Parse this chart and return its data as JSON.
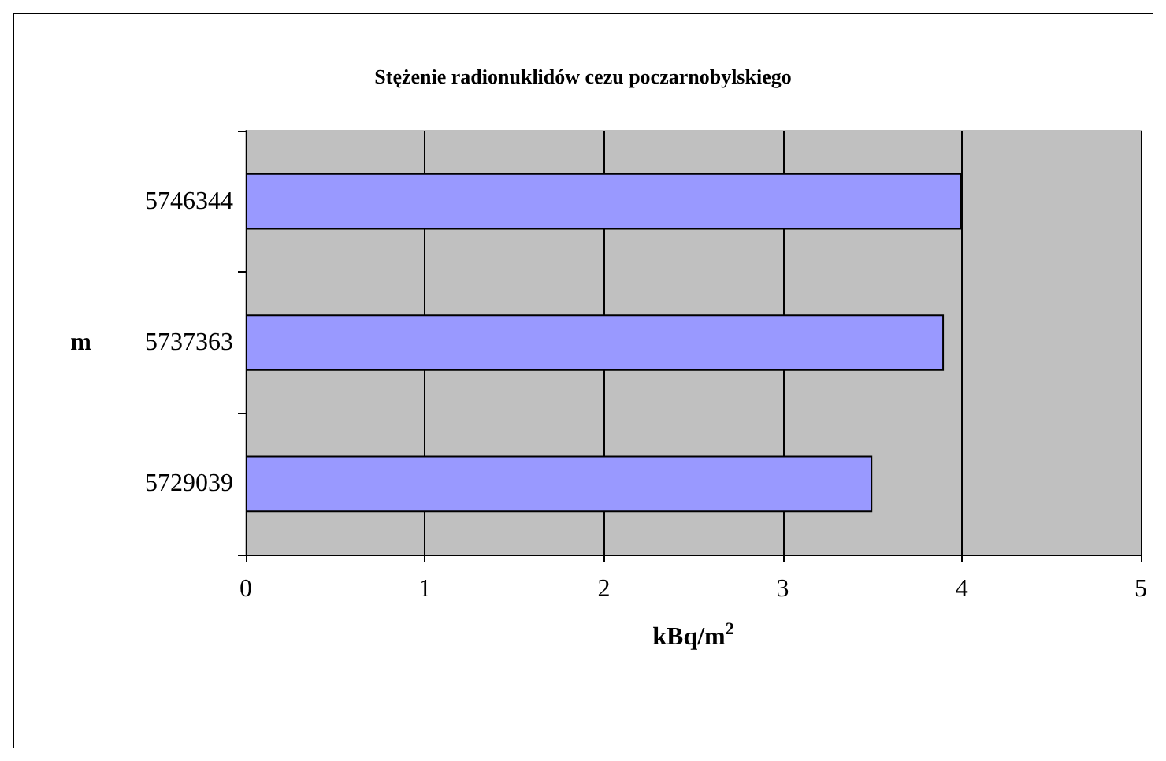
{
  "chart_data": {
    "type": "bar",
    "orientation": "horizontal",
    "title": "Stężenie radionuklidów cezu poczarnobylskiego",
    "xlabel": "kBq/m$^{2}$",
    "ylabel": "m",
    "categories": [
      "5746344",
      "5737363",
      "5729039"
    ],
    "values": [
      4.0,
      3.9,
      3.5
    ],
    "color": "#9999ff",
    "xlim": [
      0,
      5
    ],
    "xticks": [
      0,
      1,
      2,
      3,
      4,
      5
    ],
    "grid": "x"
  }
}
